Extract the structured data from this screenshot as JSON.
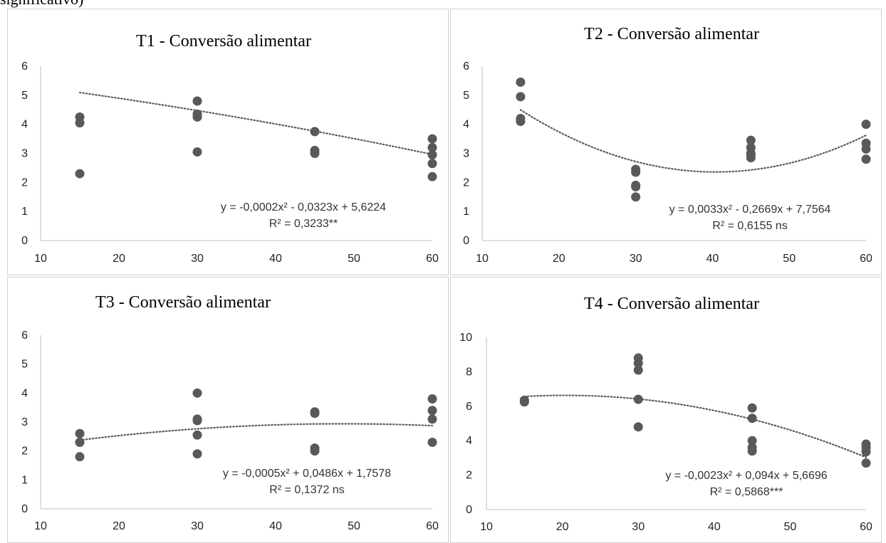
{
  "header": {
    "fragment": "significativo)"
  },
  "colors": {
    "point": "#595959",
    "trend": "#595959",
    "axis": "#bfbfbf",
    "border": "#d0d0d0"
  },
  "chart_data": [
    {
      "type": "scatter",
      "title": "T1 - Conversão alimentar",
      "xlabel": "",
      "ylabel": "",
      "xlim": [
        10,
        60
      ],
      "ylim": [
        0,
        6
      ],
      "xticks": [
        "10",
        "20",
        "30",
        "40",
        "50",
        "60"
      ],
      "yticks": [
        "0",
        "1",
        "2",
        "3",
        "4",
        "5",
        "6"
      ],
      "x": [
        15,
        15,
        15,
        30,
        30,
        30,
        30,
        45,
        45,
        45,
        60,
        60,
        60,
        60,
        60
      ],
      "y": [
        4.25,
        4.05,
        2.3,
        4.8,
        4.35,
        4.25,
        3.05,
        3.75,
        3.1,
        3.0,
        3.5,
        3.2,
        2.95,
        2.65,
        2.2
      ],
      "trendline": {
        "type": "polynomial",
        "coefficients": [
          -0.0002,
          -0.0323,
          5.6224
        ],
        "x_range": [
          15,
          60
        ]
      },
      "equation": "y = -0,0002x² - 0,0323x + 5,6224",
      "r2": "R² = 0,3233**"
    },
    {
      "type": "scatter",
      "title": "T2 - Conversão alimentar",
      "xlabel": "",
      "ylabel": "",
      "xlim": [
        10,
        60
      ],
      "ylim": [
        0,
        6
      ],
      "xticks": [
        "10",
        "20",
        "30",
        "40",
        "50",
        "60"
      ],
      "yticks": [
        "0",
        "1",
        "2",
        "3",
        "4",
        "5",
        "6"
      ],
      "x": [
        15,
        15,
        15,
        15,
        30,
        30,
        30,
        30,
        30,
        45,
        45,
        45,
        45,
        45,
        60,
        60,
        60,
        60
      ],
      "y": [
        5.45,
        4.95,
        4.2,
        4.1,
        2.45,
        2.35,
        1.9,
        1.85,
        1.5,
        3.45,
        3.2,
        3.0,
        2.95,
        2.85,
        4.0,
        3.35,
        3.15,
        2.8
      ],
      "trendline": {
        "type": "polynomial",
        "coefficients": [
          0.0033,
          -0.2669,
          7.7564
        ],
        "x_range": [
          15,
          60
        ]
      },
      "equation": "y = 0,0033x² - 0,2669x + 7,7564",
      "r2": "R² = 0,6155 ns"
    },
    {
      "type": "scatter",
      "title": "T3 - Conversão alimentar",
      "xlabel": "",
      "ylabel": "",
      "xlim": [
        10,
        60
      ],
      "ylim": [
        0,
        6
      ],
      "xticks": [
        "10",
        "20",
        "30",
        "40",
        "50",
        "60"
      ],
      "yticks": [
        "0",
        "1",
        "2",
        "3",
        "4",
        "5",
        "6"
      ],
      "x": [
        15,
        15,
        15,
        30,
        30,
        30,
        30,
        30,
        45,
        45,
        45,
        45,
        60,
        60,
        60,
        60
      ],
      "y": [
        2.6,
        2.3,
        1.8,
        4.0,
        3.1,
        3.05,
        2.55,
        1.9,
        3.35,
        3.3,
        2.1,
        2.0,
        3.8,
        3.4,
        3.1,
        2.3
      ],
      "trendline": {
        "type": "polynomial",
        "coefficients": [
          -0.0005,
          0.0486,
          1.7578
        ],
        "x_range": [
          15,
          60
        ]
      },
      "equation": "y = -0,0005x² + 0,0486x + 1,7578",
      "r2": "R² = 0,1372 ns"
    },
    {
      "type": "scatter",
      "title": "T4 - Conversão alimentar",
      "xlabel": "",
      "ylabel": "",
      "xlim": [
        10,
        60
      ],
      "ylim": [
        0,
        10
      ],
      "xticks": [
        "10",
        "20",
        "30",
        "40",
        "50",
        "60"
      ],
      "yticks": [
        "0",
        "2",
        "4",
        "6",
        "8",
        "10"
      ],
      "x": [
        15,
        15,
        30,
        30,
        30,
        30,
        30,
        45,
        45,
        45,
        45,
        45,
        60,
        60,
        60,
        60
      ],
      "y": [
        6.35,
        6.25,
        8.8,
        8.5,
        8.1,
        6.4,
        4.8,
        5.9,
        5.3,
        4.0,
        3.6,
        3.4,
        3.8,
        3.6,
        3.35,
        2.7
      ],
      "trendline": {
        "type": "polynomial",
        "coefficients": [
          -0.0023,
          0.094,
          5.6696
        ],
        "x_range": [
          15,
          60
        ]
      },
      "equation": "y = -0,0023x² + 0,094x + 5,6696",
      "r2": "R² = 0,5868***"
    }
  ]
}
